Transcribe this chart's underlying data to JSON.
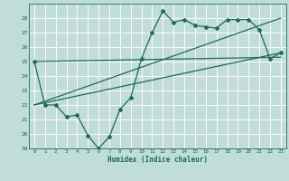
{
  "xlabel": "Humidex (Indice chaleur)",
  "bg_color": "#c0ddd8",
  "grid_color": "#ffffff",
  "line_color": "#1a6b5a",
  "xlim": [
    -0.5,
    23.5
  ],
  "ylim": [
    19,
    29
  ],
  "yticks": [
    19,
    20,
    21,
    22,
    23,
    24,
    25,
    26,
    27,
    28
  ],
  "xticks": [
    0,
    1,
    2,
    3,
    4,
    5,
    6,
    7,
    8,
    9,
    10,
    11,
    12,
    13,
    14,
    15,
    16,
    17,
    18,
    19,
    20,
    21,
    22,
    23
  ],
  "line1_x": [
    0,
    1,
    2,
    3,
    4,
    5,
    6,
    7,
    8,
    9,
    10,
    11,
    12,
    13,
    14,
    15,
    16,
    17,
    18,
    19,
    20,
    21,
    22,
    23
  ],
  "line1_y": [
    25.0,
    22.0,
    22.0,
    21.2,
    21.3,
    19.9,
    19.0,
    19.8,
    21.7,
    22.5,
    25.2,
    27.0,
    28.5,
    27.7,
    27.9,
    27.5,
    27.4,
    27.3,
    27.9,
    27.9,
    27.9,
    27.2,
    25.2,
    25.6
  ],
  "line2_x": [
    0,
    23
  ],
  "line2_y": [
    25.0,
    25.3
  ],
  "line3_x": [
    0,
    23
  ],
  "line3_y": [
    22.0,
    25.6
  ],
  "line4_x": [
    0,
    23
  ],
  "line4_y": [
    22.0,
    28.0
  ]
}
